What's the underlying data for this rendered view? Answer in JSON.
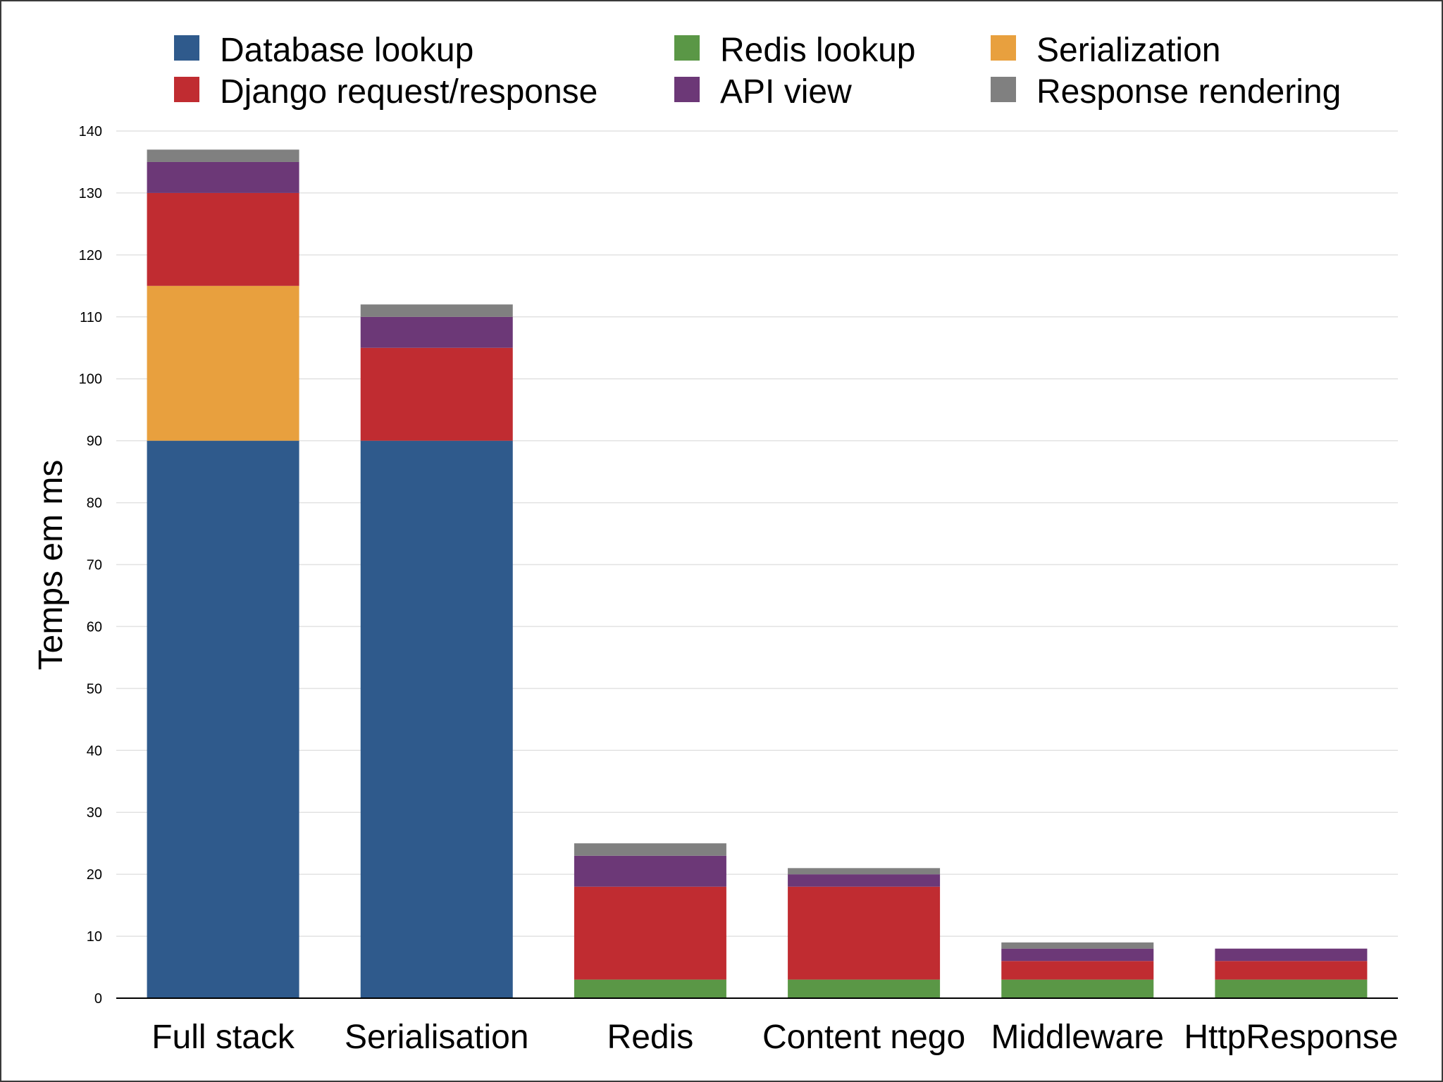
{
  "chart_data": {
    "type": "bar",
    "stacked": true,
    "title": "",
    "xlabel": "",
    "ylabel": "Temps em ms",
    "ylim": [
      0,
      140
    ],
    "yticks": [
      0,
      10,
      20,
      30,
      40,
      50,
      60,
      70,
      80,
      90,
      100,
      110,
      120,
      130,
      140
    ],
    "grid": true,
    "legend_position": "top",
    "categories": [
      "Full stack",
      "Serialisation",
      "Redis",
      "Content nego",
      "Middleware",
      "HttpResponse"
    ],
    "series": [
      {
        "name": "Database lookup",
        "color": "#2f5a8c",
        "values": [
          90,
          90,
          0,
          0,
          0,
          0
        ]
      },
      {
        "name": "Redis lookup",
        "color": "#5a9746",
        "values": [
          0,
          0,
          3,
          3,
          3,
          3
        ]
      },
      {
        "name": "Serialization",
        "color": "#e8a03e",
        "values": [
          25,
          0,
          0,
          0,
          0,
          0
        ]
      },
      {
        "name": "Django request/response",
        "color": "#c02c31",
        "values": [
          15,
          15,
          15,
          15,
          3,
          3
        ]
      },
      {
        "name": "API view",
        "color": "#6c3877",
        "values": [
          5,
          5,
          5,
          2,
          2,
          2
        ]
      },
      {
        "name": "Response rendering",
        "color": "#808080",
        "values": [
          2,
          2,
          2,
          1,
          1,
          0
        ]
      }
    ],
    "legend_order": [
      "Database lookup",
      "Redis lookup",
      "Serialization",
      "Django request/response",
      "API view",
      "Response rendering"
    ]
  }
}
